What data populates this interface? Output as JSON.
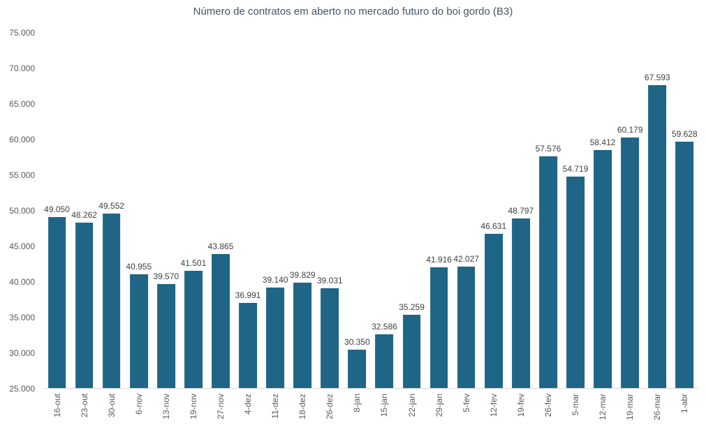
{
  "chart_data": {
    "type": "bar",
    "title": "Número de contratos em aberto no mercado futuro do boi gordo (B3)",
    "categories": [
      "16-out",
      "23-out",
      "30-out",
      "6-nov",
      "13-nov",
      "19-nov",
      "27-nov",
      "4-dez",
      "11-dez",
      "18-dez",
      "26-dez",
      "8-jan",
      "15-jan",
      "22-jan",
      "29-jan",
      "5-fev",
      "12-fev",
      "19-fev",
      "26-fev",
      "5-mar",
      "12-mar",
      "19-mar",
      "26-mar",
      "1-abr"
    ],
    "values": [
      49050,
      48262,
      49552,
      40955,
      39570,
      41501,
      43865,
      36991,
      39140,
      39829,
      39031,
      30350,
      32586,
      35259,
      41916,
      42027,
      46631,
      48797,
      57576,
      54719,
      58412,
      60179,
      67593,
      59628
    ],
    "value_labels": [
      "49.050",
      "48.262",
      "49.552",
      "40.955",
      "39.570",
      "41.501",
      "43.865",
      "36.991",
      "39.140",
      "39.829",
      "39.031",
      "30.350",
      "32.586",
      "35.259",
      "41.916",
      "42.027",
      "46.631",
      "48.797",
      "57.576",
      "54.719",
      "58.412",
      "60.179",
      "67.593",
      "59.628"
    ],
    "y_tick_labels": [
      "75.000",
      "70.000",
      "65.000",
      "60.000",
      "55.000",
      "50.000",
      "45.000",
      "40.000",
      "35.000",
      "30.000",
      "25.000"
    ],
    "y_tick_values": [
      75000,
      70000,
      65000,
      60000,
      55000,
      50000,
      45000,
      40000,
      35000,
      30000,
      25000
    ],
    "ylim": [
      25000,
      75000
    ],
    "xlabel": "",
    "ylabel": "",
    "grid": false,
    "legend": "none",
    "bar_color": "#1f6585",
    "title_color": "#44546a",
    "value_label_color": "#404040",
    "tick_label_color": "#595959",
    "axis_line_color": "#d9d9d9"
  }
}
